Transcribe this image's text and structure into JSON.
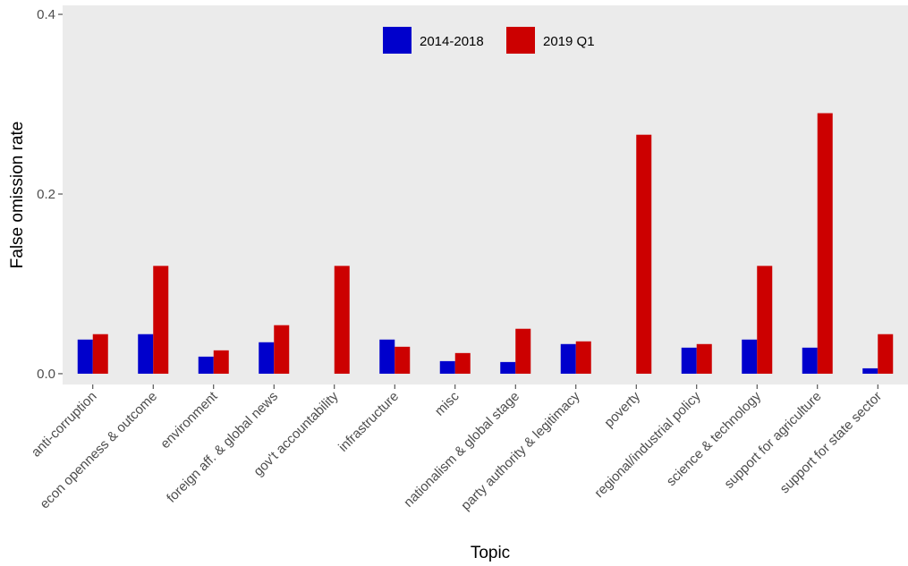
{
  "chart_data": {
    "type": "bar",
    "xlabel": "Topic",
    "ylabel": "False omission rate",
    "ylim": [
      -0.012,
      0.41
    ],
    "yticks": [
      0.0,
      0.2,
      0.4
    ],
    "ytick_labels": [
      "0.0",
      "0.2",
      "0.4"
    ],
    "grid": false,
    "legend_position": "top-center",
    "categories": [
      "anti-corruption",
      "econ openness & outcome",
      "environment",
      "foreign aff. & global news",
      "gov't accountability",
      "infrastructure",
      "misc",
      "nationalism & global stage",
      "party authority & legitimacy",
      "poverty",
      "regional/industrial policy",
      "science & technology",
      "support for agriculture",
      "support for state sector"
    ],
    "series": [
      {
        "name": "2014-2018",
        "color": "#0000cc",
        "values": [
          0.038,
          0.044,
          0.019,
          0.035,
          0.0,
          0.038,
          0.014,
          0.013,
          0.033,
          0.0,
          0.029,
          0.038,
          0.029,
          0.006
        ]
      },
      {
        "name": "2019 Q1",
        "color": "#cc0000",
        "values": [
          0.044,
          0.12,
          0.026,
          0.054,
          0.12,
          0.03,
          0.023,
          0.05,
          0.036,
          0.266,
          0.033,
          0.12,
          0.29,
          0.044
        ]
      }
    ],
    "panel_background": "#ebebeb"
  }
}
